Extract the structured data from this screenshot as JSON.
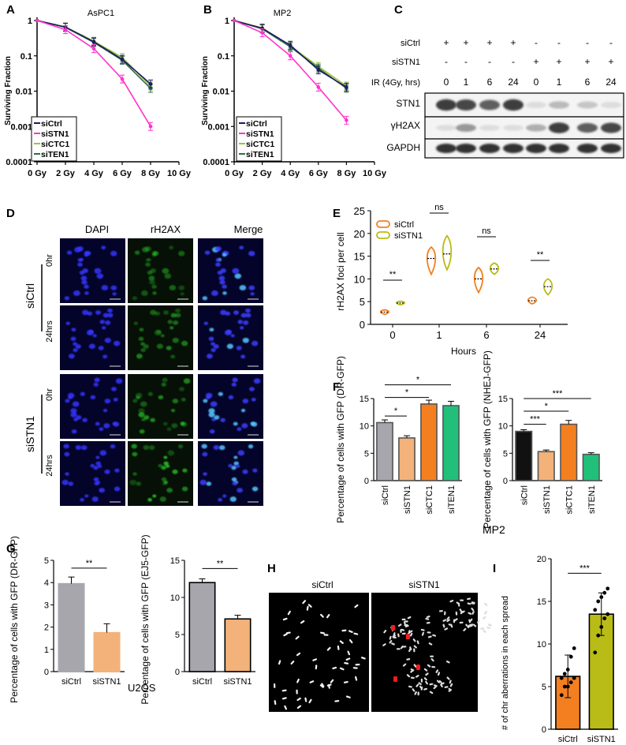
{
  "panel_letters": [
    "A",
    "B",
    "C",
    "D",
    "E",
    "F",
    "G",
    "H",
    "I"
  ],
  "panel_a": {
    "title": "AsPC1",
    "ylabel": "Surviving Fraction",
    "x_ticks": [
      "0 Gy",
      "2 Gy",
      "4 Gy",
      "6 Gy",
      "8 Gy",
      "10 Gy"
    ],
    "y_ticks": [
      "1",
      "0.1",
      "0.01",
      "0.001",
      "0.0001"
    ],
    "legend": [
      "siCtrl",
      "siSTN1",
      "siCTC1",
      "siTEN1"
    ]
  },
  "panel_b": {
    "title": "MP2",
    "ylabel": "Surviving Fraction",
    "x_ticks": [
      "0 Gy",
      "2 Gy",
      "4 Gy",
      "6 Gy",
      "8 Gy",
      "10 Gy"
    ],
    "y_ticks": [
      "1",
      "0.1",
      "0.01",
      "0.001",
      "0.0001"
    ],
    "legend": [
      "siCtrl",
      "siSTN1",
      "siCTC1",
      "siTEN1"
    ]
  },
  "panel_c": {
    "row_labels": [
      "siCtrl",
      "siSTN1",
      "IR (4Gy, hrs)"
    ],
    "siCtrl_signs": [
      "+",
      "+",
      "+",
      "+",
      "-",
      "-",
      "-",
      "-"
    ],
    "siSTN1_signs": [
      "-",
      "-",
      "-",
      "-",
      "+",
      "+",
      "+",
      "+"
    ],
    "timepoints": [
      "0",
      "1",
      "6",
      "24",
      "0",
      "1",
      "6",
      "24"
    ],
    "blots": [
      "STN1",
      "γH2AX",
      "GAPDH"
    ]
  },
  "panel_d": {
    "columns": [
      "DAPI",
      "rH2AX",
      "Merge"
    ],
    "groups": [
      "siCtrl",
      "siSTN1"
    ],
    "times": [
      "0hr",
      "24hrs",
      "0hr",
      "24hrs"
    ]
  },
  "panel_e": {
    "ylabel": "rH2AX foci per cell",
    "xlabel": "Hours",
    "x_ticks": [
      "0",
      "1",
      "6",
      "24"
    ],
    "y_ticks": [
      "0",
      "5",
      "10",
      "15",
      "20",
      "25"
    ],
    "legend": [
      "siCtrl",
      "siSTN1"
    ],
    "sig": [
      "**",
      "ns",
      "ns",
      "**"
    ]
  },
  "panel_f": {
    "ylabel_left": "Percentage of cells with GFP (DR-GFP)",
    "ylabel_right": "Percentage of cells with GFP (NHEJ-GFP)",
    "cell_line": "MP2",
    "categories": [
      "siCtrl",
      "siSTN1",
      "siCTC1",
      "siTEN1"
    ],
    "left_ticks": [
      "0",
      "5",
      "10",
      "15"
    ],
    "right_ticks": [
      "0",
      "5",
      "10",
      "15"
    ],
    "sig_left": [
      "*",
      "*",
      "*"
    ],
    "sig_right": [
      "***",
      "*",
      "***"
    ]
  },
  "panel_g": {
    "ylabel_left": "Percentage of cells with GFP (DR-GFP)",
    "ylabel_right": "Percentage of cells with GFP (EJ5-GFP)",
    "cell_line": "U2OS",
    "categories": [
      "siCtrl",
      "siSTN1"
    ],
    "left_ticks": [
      "0",
      "1",
      "2",
      "3",
      "4",
      "5"
    ],
    "right_ticks": [
      "0",
      "5",
      "10",
      "15"
    ],
    "sig": [
      "**",
      "**"
    ]
  },
  "panel_h": {
    "labels": [
      "siCtrl",
      "siSTN1"
    ]
  },
  "panel_i": {
    "ylabel": "# of chr aberrations in each spread",
    "categories": [
      "siCtrl",
      "siSTN1"
    ],
    "y_ticks": [
      "0",
      "5",
      "10",
      "15",
      "20"
    ],
    "sig": "***"
  },
  "colors": {
    "siCtrl_curve": "#1c1c5e",
    "siSTN1_curve": "#ff33cc",
    "siCTC1_curve": "#9bc23a",
    "siTEN1_curve": "#2f6b4f",
    "orange": "#f47f20",
    "olive": "#b9bb17",
    "gray": "#a7a6ad",
    "peach": "#f2b27a",
    "green": "#21c07a"
  },
  "chart_data": [
    {
      "id": "A",
      "type": "line",
      "title": "AsPC1",
      "xlabel": "",
      "ylabel": "Surviving Fraction",
      "x": [
        0,
        2,
        4,
        6,
        8
      ],
      "xlim": [
        0,
        10
      ],
      "ylim": [
        0.0001,
        1
      ],
      "yscale": "log",
      "series": [
        {
          "name": "siCtrl",
          "values": [
            1,
            0.65,
            0.25,
            0.08,
            0.016
          ]
        },
        {
          "name": "siSTN1",
          "values": [
            1,
            0.55,
            0.16,
            0.022,
            0.001
          ]
        },
        {
          "name": "siCTC1",
          "values": [
            1,
            0.66,
            0.26,
            0.09,
            0.014
          ]
        },
        {
          "name": "siTEN1",
          "values": [
            1,
            0.64,
            0.24,
            0.075,
            0.012
          ]
        }
      ]
    },
    {
      "id": "B",
      "type": "line",
      "title": "MP2",
      "xlabel": "",
      "ylabel": "Surviving Fraction",
      "x": [
        0,
        2,
        4,
        6,
        8
      ],
      "xlim": [
        0,
        10
      ],
      "ylim": [
        0.0001,
        1
      ],
      "yscale": "log",
      "series": [
        {
          "name": "siCtrl",
          "values": [
            1,
            0.6,
            0.2,
            0.04,
            0.013
          ]
        },
        {
          "name": "siSTN1",
          "values": [
            1,
            0.45,
            0.1,
            0.013,
            0.0015
          ]
        },
        {
          "name": "siCTC1",
          "values": [
            1,
            0.62,
            0.19,
            0.05,
            0.014
          ]
        },
        {
          "name": "siTEN1",
          "values": [
            1,
            0.58,
            0.18,
            0.045,
            0.012
          ]
        }
      ]
    },
    {
      "id": "E",
      "type": "violin",
      "ylabel": "rH2AX foci per cell",
      "xlabel": "Hours",
      "categories": [
        "0",
        "1",
        "6",
        "24"
      ],
      "ylim": [
        0,
        25
      ],
      "series": [
        {
          "name": "siCtrl",
          "values": [
            2.7,
            14.5,
            10.0,
            5.2
          ],
          "range": [
            [
              2.2,
              3.2
            ],
            [
              11,
              17
            ],
            [
              7,
              12.5
            ],
            [
              4.5,
              6
            ]
          ]
        },
        {
          "name": "siSTN1",
          "values": [
            4.7,
            15.5,
            12.2,
            8.3
          ],
          "range": [
            [
              4.3,
              5.1
            ],
            [
              12,
              19.5
            ],
            [
              11,
              13.5
            ],
            [
              6.5,
              10
            ]
          ]
        }
      ]
    },
    {
      "id": "F-left",
      "type": "bar",
      "ylabel": "Percentage of cells with GFP (DR-GFP)",
      "categories": [
        "siCtrl",
        "siSTN1",
        "siCTC1",
        "siTEN1"
      ],
      "values": [
        10.6,
        7.8,
        14.0,
        13.7
      ],
      "errors": [
        0.5,
        0.4,
        0.7,
        0.8
      ],
      "ylim": [
        0,
        15
      ]
    },
    {
      "id": "F-right",
      "type": "bar",
      "ylabel": "Percentage of cells with GFP (NHEJ-GFP)",
      "categories": [
        "siCtrl",
        "siSTN1",
        "siCTC1",
        "siTEN1"
      ],
      "values": [
        9.0,
        5.3,
        10.3,
        4.8
      ],
      "errors": [
        0.3,
        0.3,
        0.7,
        0.3
      ],
      "ylim": [
        0,
        15
      ]
    },
    {
      "id": "G-left",
      "type": "bar",
      "ylabel": "Percentage of cells with GFP (DR-GFP)",
      "categories": [
        "siCtrl",
        "siSTN1"
      ],
      "values": [
        3.95,
        1.75
      ],
      "errors": [
        0.3,
        0.4
      ],
      "ylim": [
        0,
        5
      ]
    },
    {
      "id": "G-right",
      "type": "bar",
      "ylabel": "Percentage of cells with GFP (EJ5-GFP)",
      "categories": [
        "siCtrl",
        "siSTN1"
      ],
      "values": [
        12.0,
        7.1
      ],
      "errors": [
        0.5,
        0.5
      ],
      "ylim": [
        0,
        15
      ]
    },
    {
      "id": "I",
      "type": "bar",
      "ylabel": "# of chr aberrations in each spread",
      "categories": [
        "siCtrl",
        "siSTN1"
      ],
      "values": [
        6.2,
        13.5
      ],
      "errors": [
        2.5,
        2.5
      ],
      "ylim": [
        0,
        20
      ],
      "points": [
        [
          4,
          5,
          5,
          5.5,
          6,
          6,
          6.5,
          7,
          8.5,
          9.5
        ],
        [
          9,
          11,
          12,
          13,
          13.5,
          14,
          15,
          15.5,
          16,
          16.5
        ]
      ]
    }
  ]
}
